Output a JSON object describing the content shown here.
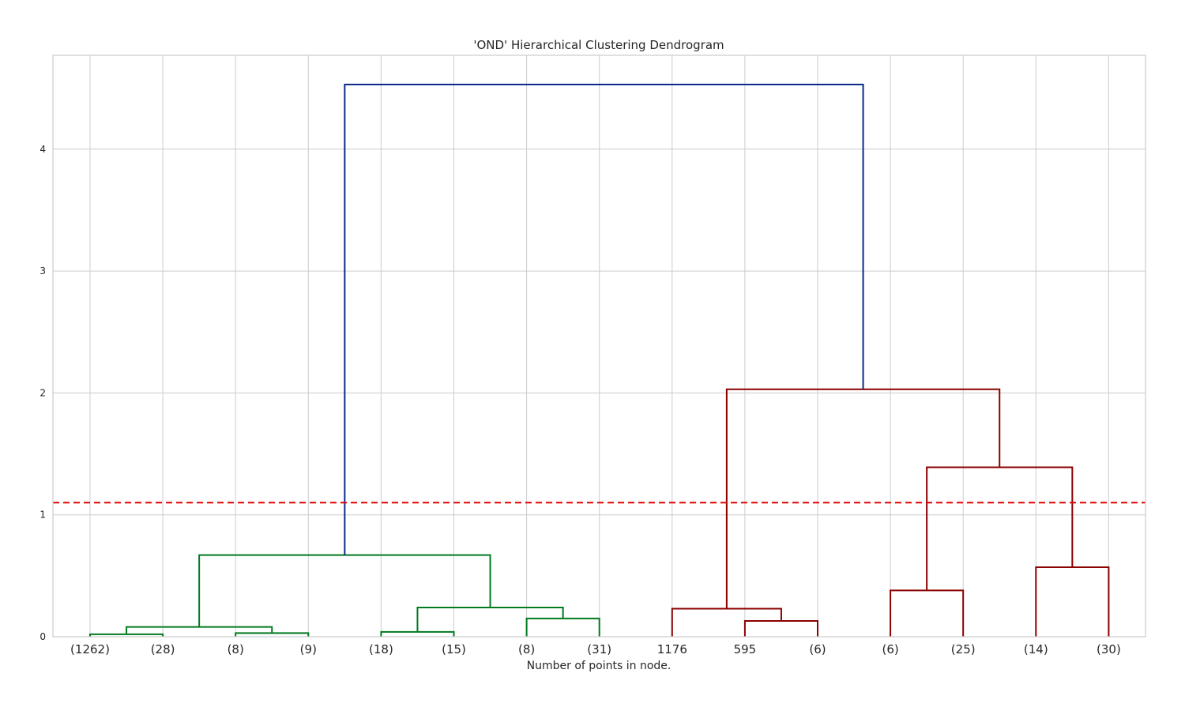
{
  "chart_data": {
    "type": "dendrogram",
    "title": "'OND' Hierarchical Clustering Dendrogram",
    "xlabel": "Number of points in node.",
    "ylabel": "",
    "ylim": [
      0,
      4.77
    ],
    "yticks": [
      0,
      1,
      2,
      3,
      4
    ],
    "grid": true,
    "leaves": [
      "(1262)",
      "(28)",
      "(8)",
      "(9)",
      "(18)",
      "(15)",
      "(8)",
      "(31)",
      "1176",
      "595",
      "(6)",
      "(6)",
      "(25)",
      "(14)",
      "(30)"
    ],
    "cut_height": 1.1,
    "colors": {
      "green": "#007a1f",
      "red": "#8b0000",
      "blue": "#0a2a8c",
      "cut": "#e00000"
    },
    "links": [
      {
        "left": 0,
        "right": 1,
        "height": 0.02,
        "color": "green"
      },
      {
        "left": 2,
        "right": 3,
        "height": 0.03,
        "color": "green"
      },
      {
        "left": 0.5,
        "right": 2.5,
        "height": 0.08,
        "color": "green"
      },
      {
        "left": 4,
        "right": 5,
        "height": 0.04,
        "color": "green"
      },
      {
        "left": 6,
        "right": 7,
        "height": 0.15,
        "color": "green"
      },
      {
        "left": 4.5,
        "right": 6.5,
        "height": 0.24,
        "color": "green"
      },
      {
        "left": 1.5,
        "right": 5.5,
        "height": 0.67,
        "color": "green",
        "left_base": 0.08,
        "right_base": 0.24
      },
      {
        "left": 9,
        "right": 10,
        "height": 0.13,
        "color": "red"
      },
      {
        "left": 8,
        "right": 9.5,
        "height": 0.23,
        "color": "red"
      },
      {
        "left": 11,
        "right": 12,
        "height": 0.38,
        "color": "red"
      },
      {
        "left": 13,
        "right": 14,
        "height": 0.57,
        "color": "red"
      },
      {
        "left": 11.5,
        "right": 13.5,
        "height": 1.39,
        "color": "red"
      },
      {
        "left": 8.75,
        "right": 12.5,
        "height": 2.03,
        "color": "red"
      },
      {
        "left": 3.5,
        "right": 10.625,
        "height": 4.53,
        "color": "blue"
      }
    ]
  }
}
